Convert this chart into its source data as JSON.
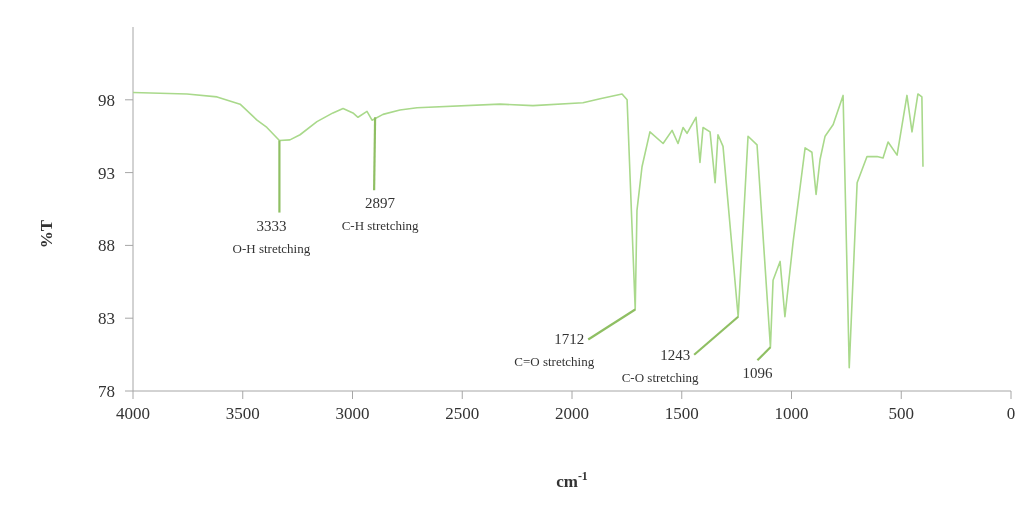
{
  "chart_data": {
    "type": "line",
    "xlabel": "cm$^{-1}$",
    "ylabel": "%T",
    "xlim": [
      4000,
      0
    ],
    "ylim": [
      78,
      103
    ],
    "xticks": [
      4000,
      3500,
      3000,
      2500,
      2000,
      1500,
      1000,
      500,
      0
    ],
    "yticks": [
      78,
      83,
      88,
      93,
      98
    ],
    "grid": false,
    "marker": "none",
    "line_style": "solid",
    "series": [
      {
        "color": "#a9d98b",
        "x": [
          4000,
          3754,
          3617,
          3512,
          3435,
          3390,
          3333,
          3285,
          3239,
          3162,
          3089,
          3043,
          2998,
          2975,
          2934,
          2911,
          2861,
          2784,
          2706,
          2328,
          2178,
          1950,
          1872,
          1772,
          1749,
          1712,
          1704,
          1681,
          1645,
          1585,
          1544,
          1517,
          1494,
          1476,
          1435,
          1417,
          1403,
          1371,
          1348,
          1335,
          1312,
          1243,
          1198,
          1157,
          1096,
          1084,
          1052,
          1030,
          993,
          938,
          907,
          888,
          870,
          847,
          810,
          765,
          737,
          701,
          656,
          610,
          583,
          560,
          519,
          474,
          451,
          424,
          406,
          401
        ],
        "values": [
          98.5,
          98.4,
          98.2,
          97.7,
          96.6,
          96.1,
          95.2,
          95.25,
          95.6,
          96.5,
          97.1,
          97.4,
          97.1,
          96.8,
          97.2,
          96.6,
          97.0,
          97.3,
          97.45,
          97.7,
          97.6,
          97.8,
          98.07,
          98.4,
          98.0,
          83.6,
          90.4,
          93.4,
          95.8,
          95.0,
          95.9,
          95.0,
          96.1,
          95.7,
          96.8,
          93.7,
          96.1,
          95.8,
          92.3,
          95.6,
          94.8,
          83.1,
          95.5,
          94.9,
          81.0,
          85.6,
          86.9,
          83.1,
          88.2,
          94.7,
          94.4,
          91.5,
          93.9,
          95.5,
          96.3,
          98.3,
          79.6,
          92.3,
          94.1,
          94.1,
          94.0,
          95.1,
          94.2,
          98.3,
          95.8,
          98.4,
          98.2,
          93.4
        ]
      }
    ],
    "annotations": [
      {
        "text": "3333\nO-H stretching",
        "x": 3333,
        "y": 95.2
      },
      {
        "text": "2897\nC-H stretching",
        "x": 2897,
        "y": 96.8
      },
      {
        "text": "1712\nC=O stretching",
        "x": 1712,
        "y": 83.6
      },
      {
        "text": "1243\nC-O stretching",
        "x": 1243,
        "y": 83.1
      },
      {
        "text": "1096",
        "x": 1096,
        "y": 81.0
      }
    ]
  }
}
